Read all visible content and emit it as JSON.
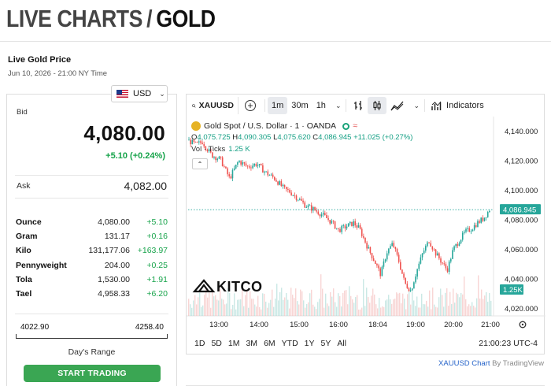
{
  "header": {
    "title_light": "LIVE CHARTS",
    "title_sep": "/",
    "title_strong": "GOLD"
  },
  "price_panel": {
    "title": "Live Gold Price",
    "date": "Jun 10, 2026 - 21:00 NY Time",
    "currency": "USD",
    "bid_label": "Bid",
    "bid_value": "4,080.00",
    "bid_change": "+5.10 (+0.24%)",
    "ask_label": "Ask",
    "ask_value": "4,082.00",
    "units": [
      {
        "unit": "Ounce",
        "price": "4,080.00",
        "change": "+5.10"
      },
      {
        "unit": "Gram",
        "price": "131.17",
        "change": "+0.16"
      },
      {
        "unit": "Kilo",
        "price": "131,177.06",
        "change": "+163.97"
      },
      {
        "unit": "Pennyweight",
        "price": "204.00",
        "change": "+0.25"
      },
      {
        "unit": "Tola",
        "price": "1,530.00",
        "change": "+1.91"
      },
      {
        "unit": "Tael",
        "price": "4,958.33",
        "change": "+6.20"
      }
    ],
    "range_low": "4022.90",
    "range_high": "4258.40",
    "range_label": "Day's Range",
    "cta_label": "START TRADING"
  },
  "chart": {
    "symbol": "XAUUSD",
    "intervals": [
      "1m",
      "30m",
      "1h"
    ],
    "active_interval": "1m",
    "indicators_label": "Indicators",
    "instrument": "Gold Spot / U.S. Dollar · 1 · OANDA",
    "ohlc": {
      "o_label": "O",
      "o": "4,075.725",
      "h_label": "H",
      "h": "4,090.305",
      "l_label": "L",
      "l": "4,075.620",
      "c_label": "C",
      "c": "4,086.945",
      "change": "+11.025 (+0.27%)"
    },
    "vol_label": "Vol · Ticks",
    "vol_value": "1.25 K",
    "watermark": "KITCO",
    "ranges": [
      "1D",
      "5D",
      "1M",
      "3M",
      "6M",
      "YTD",
      "1Y",
      "5Y",
      "All"
    ],
    "timezone": "21:00:23 UTC-4",
    "attribution_link": "XAUUSD Chart",
    "attribution_text": " By TradingView",
    "colors": {
      "up": "#26a69a",
      "down": "#ef5350",
      "accent": "#16a34a",
      "price_tag": "#26a69a"
    }
  },
  "chart_data": {
    "type": "candlestick",
    "y_ticks": [
      "4,140.000",
      "4,120.000",
      "4,100.000",
      "4,080.000",
      "4,060.000",
      "4,040.000",
      "4,020.000"
    ],
    "ylim": [
      4015,
      4150
    ],
    "x_ticks": [
      "13:00",
      "14:00",
      "15:00",
      "16:00",
      "18:04",
      "19:00",
      "20:00",
      "21:00"
    ],
    "last_price": "4,086.945",
    "last_volume": "1.25K",
    "price_path": [
      [
        0,
        4134
      ],
      [
        0.03,
        4131
      ],
      [
        0.05,
        4133
      ],
      [
        0.08,
        4124
      ],
      [
        0.11,
        4121
      ],
      [
        0.14,
        4108
      ],
      [
        0.17,
        4120
      ],
      [
        0.2,
        4116
      ],
      [
        0.23,
        4118
      ],
      [
        0.26,
        4112
      ],
      [
        0.29,
        4108
      ],
      [
        0.32,
        4101
      ],
      [
        0.34,
        4099
      ],
      [
        0.37,
        4094
      ],
      [
        0.39,
        4090
      ],
      [
        0.42,
        4087
      ],
      [
        0.45,
        4083
      ],
      [
        0.48,
        4078
      ],
      [
        0.5,
        4073
      ],
      [
        0.53,
        4076
      ],
      [
        0.55,
        4078
      ],
      [
        0.57,
        4074
      ],
      [
        0.6,
        4060
      ],
      [
        0.62,
        4052
      ],
      [
        0.64,
        4043
      ],
      [
        0.66,
        4058
      ],
      [
        0.68,
        4064
      ],
      [
        0.7,
        4052
      ],
      [
        0.72,
        4037
      ],
      [
        0.74,
        4032
      ],
      [
        0.76,
        4046
      ],
      [
        0.78,
        4058
      ],
      [
        0.8,
        4066
      ],
      [
        0.82,
        4058
      ],
      [
        0.84,
        4052
      ],
      [
        0.86,
        4046
      ],
      [
        0.88,
        4060
      ],
      [
        0.9,
        4066
      ],
      [
        0.92,
        4072
      ],
      [
        0.94,
        4074
      ],
      [
        0.96,
        4078
      ],
      [
        0.98,
        4081
      ],
      [
        1.0,
        4087
      ]
    ]
  }
}
